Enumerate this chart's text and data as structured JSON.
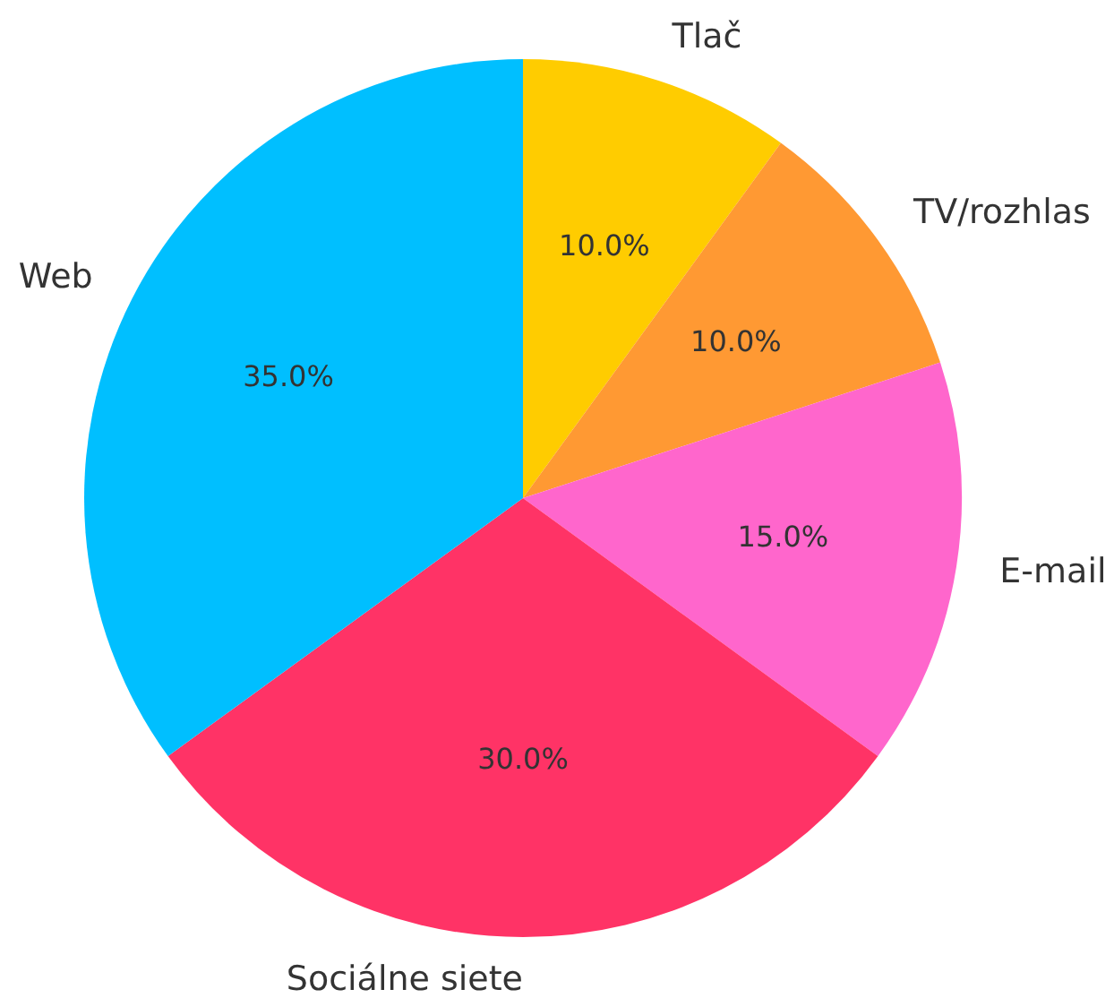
{
  "chart_data": {
    "type": "pie",
    "categories": [
      "Tlač",
      "TV/rozhlas",
      "E-mail",
      "Sociálne siete",
      "Web"
    ],
    "values": [
      10,
      10,
      15,
      30,
      35
    ],
    "colors": [
      "#ffcc00",
      "#ff9933",
      "#ff66cc",
      "#ff3366",
      "#00bfff"
    ],
    "value_labels": [
      "10.0%",
      "10.0%",
      "15.0%",
      "30.0%",
      "35.0%"
    ]
  }
}
